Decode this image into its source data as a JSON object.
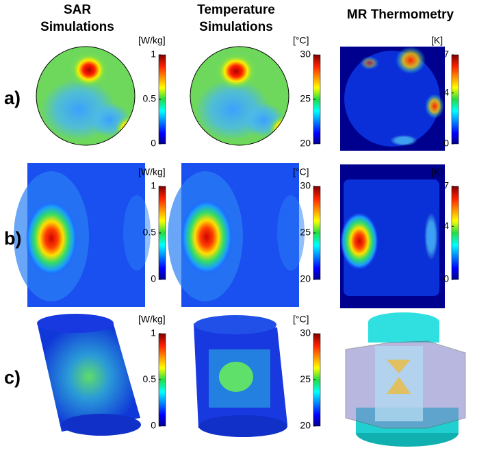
{
  "columns": [
    [
      "SAR",
      "Simulations"
    ],
    [
      "Temperature",
      "Simulations"
    ],
    [
      "MR Thermometry"
    ]
  ],
  "rows": [
    "a)",
    "b)",
    "c)"
  ],
  "colorbars": [
    [
      {
        "unit": "[W/kg]",
        "ticks": [
          0,
          0.5,
          1
        ]
      },
      {
        "unit": "[°C]",
        "ticks": [
          20,
          25,
          30
        ]
      },
      {
        "unit": "[K]",
        "ticks": [
          0,
          4,
          7
        ]
      }
    ],
    [
      {
        "unit": "[W/kg]",
        "ticks": [
          0,
          0.5,
          1
        ]
      },
      {
        "unit": "[°C]",
        "ticks": [
          20,
          25,
          30
        ]
      },
      {
        "unit": "[K]",
        "ticks": [
          0,
          4,
          7
        ]
      }
    ],
    [
      {
        "unit": "[W/kg]",
        "ticks": [
          0,
          0.5,
          1
        ]
      },
      {
        "unit": "[°C]",
        "ticks": [
          20,
          25,
          30
        ]
      }
    ]
  ]
}
